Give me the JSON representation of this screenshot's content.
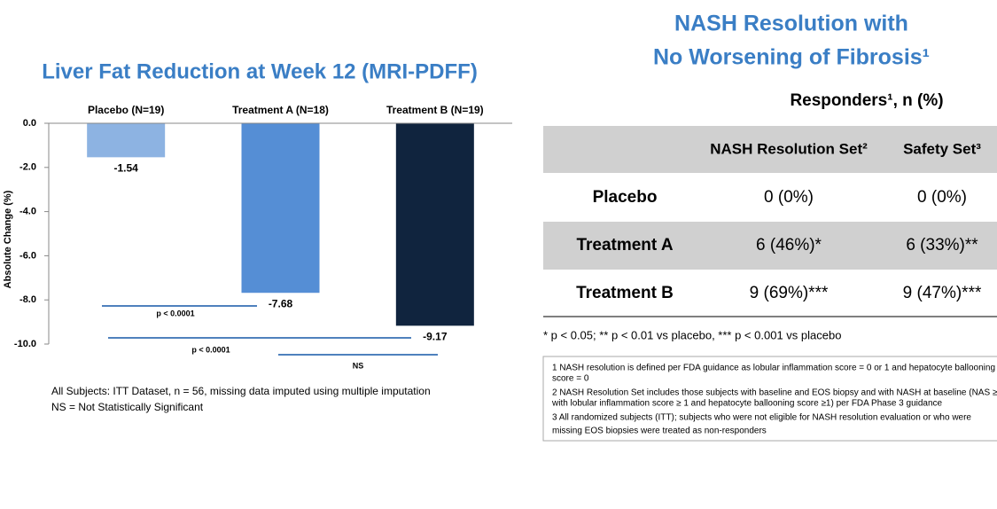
{
  "chart_data": {
    "type": "bar",
    "title": "Liver Fat Reduction at Week 12 (MRI-PDFF)",
    "y_label": "Absolute Change (%)",
    "categories": [
      "Placebo (N=19)",
      "Treatment A (N=18)",
      "Treatment B (N=19)"
    ],
    "values": [
      -1.54,
      -7.68,
      -9.17
    ],
    "colors": [
      "#8db3e2",
      "#558ed5",
      "#10243e"
    ],
    "ylim": [
      -10,
      0
    ],
    "yticks": [
      {
        "value": 0,
        "label": "0.0"
      },
      {
        "value": -2,
        "label": "-2.0"
      },
      {
        "value": -4,
        "label": "-4.0"
      },
      {
        "value": -6,
        "label": "-6.0"
      },
      {
        "value": -8,
        "label": "-8.0"
      },
      {
        "value": -10,
        "label": "-10.0"
      }
    ],
    "comparisons": [
      {
        "label": "p < 0.0001"
      },
      {
        "label": "p < 0.0001"
      },
      {
        "label": "NS"
      }
    ],
    "footnotes": [
      "All Subjects: ITT Dataset, n = 56, missing data imputed using multiple imputation",
      "NS = Not Statistically Significant"
    ]
  },
  "table": {
    "title": [
      "NASH Resolution with",
      "No Worsening of Fibrosis¹"
    ],
    "caption": "Responders¹, n (%)",
    "columns": [
      "NASH Resolution Set²",
      "Safety Set³"
    ],
    "rows": [
      [
        "Placebo",
        "0 (0%)",
        "0 (0%)"
      ],
      [
        "Treatment A",
        "6 (46%)*",
        "6 (33%)**"
      ],
      [
        "Treatment B",
        "9 (69%)***",
        "9 (47%)***"
      ]
    ],
    "footnote": "* p < 0.05; ** p < 0.01 vs placebo, *** p < 0.001 vs placebo",
    "notes": [
      "1 NASH resolution is defined per FDA guidance as lobular inflammation score = 0 or 1 and hepatocyte ballooning",
      "score = 0",
      "2 NASH Resolution Set includes those subjects with baseline and EOS biopsy and  with NASH at baseline (NAS ≥ 4",
      "with lobular  inflammation score ≥ 1 and hepatocyte ballooning score ≥1) per FDA Phase 3 guidance",
      "3 All randomized subjects (ITT); subjects who were not eligible for NASH resolution evaluation or who were",
      "missing EOS biopsies were treated as non-responders"
    ]
  }
}
